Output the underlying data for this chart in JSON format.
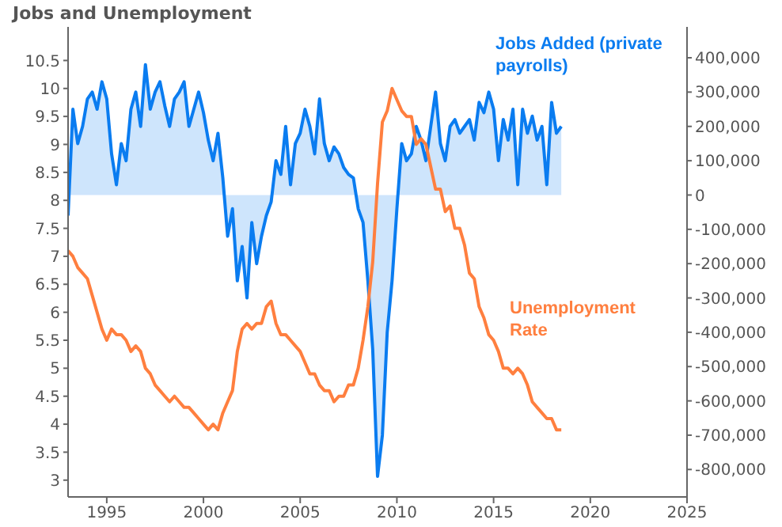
{
  "chart_data": {
    "type": "line",
    "title": "Jobs and Unemployment",
    "x": [
      1993,
      1993.25,
      1993.5,
      1993.75,
      1994,
      1994.25,
      1994.5,
      1994.75,
      1995,
      1995.25,
      1995.5,
      1995.75,
      1996,
      1996.25,
      1996.5,
      1996.75,
      1997,
      1997.25,
      1997.5,
      1997.75,
      1998,
      1998.25,
      1998.5,
      1998.75,
      1999,
      1999.25,
      1999.5,
      1999.75,
      2000,
      2000.25,
      2000.5,
      2000.75,
      2001,
      2001.25,
      2001.5,
      2001.75,
      2002,
      2002.25,
      2002.5,
      2002.75,
      2003,
      2003.25,
      2003.5,
      2003.75,
      2004,
      2004.25,
      2004.5,
      2004.75,
      2005,
      2005.25,
      2005.5,
      2005.75,
      2006,
      2006.25,
      2006.5,
      2006.75,
      2007,
      2007.25,
      2007.5,
      2007.75,
      2008,
      2008.25,
      2008.5,
      2008.75,
      2009,
      2009.25,
      2009.5,
      2009.75,
      2010,
      2010.25,
      2010.5,
      2010.75,
      2011,
      2011.25,
      2011.5,
      2011.75,
      2012,
      2012.25,
      2012.5,
      2012.75,
      2013,
      2013.25,
      2013.5,
      2013.75,
      2014,
      2014.25,
      2014.5,
      2014.75,
      2015,
      2015.25,
      2015.5,
      2015.75,
      2016,
      2016.25,
      2016.5,
      2016.75,
      2017,
      2017.25,
      2017.5,
      2017.75,
      2018,
      2018.25,
      2018.5
    ],
    "series": [
      {
        "name": "Jobs Added (private payrolls)",
        "type": "area",
        "axis": "y2",
        "color": "#0a7cf0",
        "values": [
          -60000,
          250000,
          150000,
          200000,
          280000,
          300000,
          250000,
          330000,
          280000,
          120000,
          30000,
          150000,
          100000,
          250000,
          300000,
          200000,
          380000,
          250000,
          300000,
          330000,
          260000,
          200000,
          280000,
          300000,
          330000,
          200000,
          250000,
          300000,
          240000,
          160000,
          100000,
          180000,
          50000,
          -120000,
          -40000,
          -250000,
          -150000,
          -300000,
          -80000,
          -200000,
          -120000,
          -60000,
          -20000,
          100000,
          60000,
          200000,
          30000,
          150000,
          180000,
          250000,
          200000,
          120000,
          280000,
          150000,
          100000,
          140000,
          120000,
          80000,
          60000,
          50000,
          -40000,
          -80000,
          -250000,
          -450000,
          -820000,
          -700000,
          -400000,
          -250000,
          -40000,
          150000,
          100000,
          120000,
          200000,
          160000,
          100000,
          200000,
          300000,
          150000,
          100000,
          200000,
          220000,
          180000,
          200000,
          220000,
          160000,
          270000,
          240000,
          300000,
          250000,
          100000,
          220000,
          160000,
          250000,
          30000,
          250000,
          180000,
          230000,
          160000,
          200000,
          30000,
          270000,
          180000,
          200000
        ]
      },
      {
        "name": "Unemployment Rate",
        "color": "#ff7f3f",
        "values": [
          7.1,
          7.0,
          6.8,
          6.7,
          6.6,
          6.3,
          6.0,
          5.7,
          5.5,
          5.7,
          5.6,
          5.6,
          5.5,
          5.3,
          5.4,
          5.3,
          5.0,
          4.9,
          4.7,
          4.6,
          4.5,
          4.4,
          4.5,
          4.4,
          4.3,
          4.3,
          4.2,
          4.1,
          4.0,
          3.9,
          4.0,
          3.9,
          4.2,
          4.4,
          4.6,
          5.3,
          5.7,
          5.8,
          5.7,
          5.8,
          5.8,
          6.1,
          6.2,
          5.8,
          5.6,
          5.6,
          5.5,
          5.4,
          5.3,
          5.1,
          4.9,
          4.9,
          4.7,
          4.6,
          4.6,
          4.4,
          4.5,
          4.5,
          4.7,
          4.7,
          5.0,
          5.5,
          6.1,
          6.9,
          8.3,
          9.4,
          9.6,
          10.0,
          9.8,
          9.6,
          9.5,
          9.5,
          9.0,
          9.1,
          9.0,
          8.6,
          8.2,
          8.2,
          7.8,
          7.9,
          7.5,
          7.5,
          7.2,
          6.7,
          6.6,
          6.1,
          5.9,
          5.6,
          5.5,
          5.3,
          5.0,
          5.0,
          4.9,
          5.0,
          4.9,
          4.7,
          4.4,
          4.3,
          4.2,
          4.1,
          4.1,
          3.9,
          3.9
        ]
      }
    ],
    "xlim": [
      1993,
      2025
    ],
    "xticks": [
      1995,
      2000,
      2005,
      2010,
      2015,
      2020,
      2025
    ],
    "ylim": [
      2.7,
      11.1
    ],
    "yticks": [
      3,
      3.5,
      4,
      4.5,
      5,
      5.5,
      6,
      6.5,
      7,
      7.5,
      8,
      8.5,
      9,
      9.5,
      10,
      10.5
    ],
    "y2lim": [
      -880000,
      490000
    ],
    "y2ticks": [
      {
        "value": 400000,
        "label": "400,000"
      },
      {
        "value": 300000,
        "label": "300,000"
      },
      {
        "value": 200000,
        "label": "200,000"
      },
      {
        "value": 100000,
        "label": "100,000"
      },
      0,
      {
        "value": -100000,
        "label": "-100,000"
      },
      {
        "value": -200000,
        "label": "-200,000"
      },
      {
        "value": -300000,
        "label": "-300,000"
      },
      {
        "value": -400000,
        "label": "-400,000"
      },
      {
        "value": -500000,
        "label": "-500,000"
      },
      {
        "value": -600000,
        "label": "-600,000"
      },
      {
        "value": -700000,
        "label": "-700,000"
      },
      {
        "value": -800000,
        "label": "-800,000"
      }
    ],
    "grid": false,
    "legend": false,
    "marker": "none",
    "line_style": "solid"
  }
}
